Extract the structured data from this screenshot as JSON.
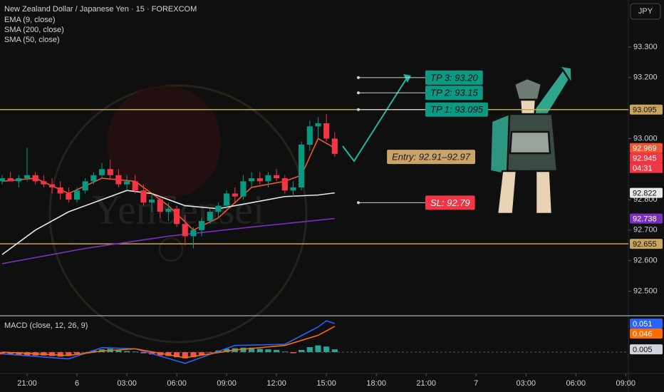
{
  "chart_data": [
    {
      "type": "candlestick",
      "title": "New Zealand Dollar / Japanese Yen · 15 · FOREXCOM",
      "currency": "JPY",
      "watermark": "YenSensei",
      "countdown": "04:31",
      "x": [
        0,
        1,
        2,
        3,
        4,
        5,
        6,
        7,
        8,
        9,
        10,
        11,
        12,
        13,
        14,
        15,
        16,
        17,
        18,
        19,
        20,
        21,
        22,
        23,
        24,
        25,
        26,
        27,
        28,
        29,
        30,
        31,
        32,
        33,
        34,
        35,
        36,
        37,
        38,
        39,
        40
      ],
      "open": [
        92.86,
        92.87,
        92.86,
        92.87,
        92.88,
        92.86,
        92.85,
        92.84,
        92.82,
        92.8,
        92.83,
        92.86,
        92.88,
        92.9,
        92.88,
        92.85,
        92.86,
        92.83,
        92.79,
        92.8,
        92.76,
        92.77,
        92.72,
        92.68,
        92.7,
        92.73,
        92.76,
        92.78,
        92.82,
        92.81,
        92.86,
        92.87,
        92.86,
        92.88,
        92.87,
        92.83,
        92.84,
        92.98,
        93.04,
        93.05,
        93.0
      ],
      "high": [
        92.88,
        92.89,
        92.88,
        92.97,
        92.89,
        92.88,
        92.87,
        92.86,
        92.84,
        92.84,
        92.87,
        92.89,
        92.92,
        92.93,
        92.9,
        92.88,
        92.88,
        92.85,
        92.82,
        92.81,
        92.79,
        92.78,
        92.75,
        92.71,
        92.74,
        92.77,
        92.79,
        92.83,
        92.84,
        92.88,
        92.89,
        92.89,
        92.89,
        92.9,
        92.88,
        92.86,
        92.99,
        93.06,
        93.07,
        93.08,
        93.02
      ],
      "low": [
        92.85,
        92.86,
        92.84,
        92.86,
        92.85,
        92.84,
        92.82,
        92.8,
        92.79,
        92.79,
        92.82,
        92.85,
        92.87,
        92.87,
        92.84,
        92.83,
        92.82,
        92.78,
        92.76,
        92.74,
        92.73,
        92.71,
        92.65,
        92.64,
        92.68,
        92.72,
        92.74,
        92.77,
        92.79,
        92.8,
        92.84,
        92.85,
        92.84,
        92.86,
        92.82,
        92.81,
        92.83,
        92.96,
        93.0,
        92.99,
        92.94
      ],
      "close": [
        92.87,
        92.86,
        92.87,
        92.88,
        92.86,
        92.85,
        92.84,
        92.82,
        92.8,
        92.83,
        92.86,
        92.88,
        92.9,
        92.88,
        92.85,
        92.86,
        92.83,
        92.79,
        92.8,
        92.76,
        92.77,
        92.72,
        92.68,
        92.7,
        92.73,
        92.76,
        92.78,
        92.82,
        92.81,
        92.86,
        92.87,
        92.86,
        92.88,
        92.87,
        92.83,
        92.84,
        92.98,
        93.04,
        93.05,
        93.0,
        92.95
      ],
      "up_color": "#089981",
      "down_color": "#f23645",
      "series": [
        {
          "name": "EMA (9, close)",
          "color": "#f2542d",
          "x": [
            0,
            4,
            8,
            12,
            16,
            20,
            23,
            26,
            30,
            34,
            36,
            38,
            40
          ],
          "values": [
            92.86,
            92.87,
            92.82,
            92.87,
            92.86,
            92.78,
            92.7,
            92.74,
            92.84,
            92.86,
            92.88,
            93.0,
            92.969
          ]
        },
        {
          "name": "SMA (200, close)",
          "color": "#7b2fbe",
          "x": [
            0,
            10,
            20,
            30,
            40
          ],
          "values": [
            92.59,
            92.64,
            92.68,
            92.71,
            92.738
          ]
        },
        {
          "name": "SMA (50, close)",
          "color": "#e8e8e8",
          "x": [
            0,
            4,
            8,
            12,
            15,
            18,
            22,
            26,
            30,
            34,
            38,
            40
          ],
          "values": [
            92.62,
            92.7,
            92.76,
            92.8,
            92.83,
            92.82,
            92.78,
            92.77,
            92.79,
            92.81,
            92.815,
            92.822
          ]
        }
      ],
      "xlim": [
        -0.26,
        75.32
      ],
      "xticks": [
        {
          "value": 3,
          "label": "21:00"
        },
        {
          "value": 9,
          "label": "6"
        },
        {
          "value": 15,
          "label": "03:00"
        },
        {
          "value": 21,
          "label": "06:00"
        },
        {
          "value": 27,
          "label": "09:00"
        },
        {
          "value": 33,
          "label": "12:00"
        },
        {
          "value": 39,
          "label": "15:00"
        },
        {
          "value": 45,
          "label": "18:00"
        },
        {
          "value": 51,
          "label": "21:00"
        },
        {
          "value": 57,
          "label": "7"
        },
        {
          "value": 63,
          "label": "03:00"
        },
        {
          "value": 69,
          "label": "06:00"
        },
        {
          "value": 75,
          "label": "09:00"
        }
      ],
      "ylim": [
        92.4193,
        93.4542
      ],
      "yticks": [
        {
          "value": 93.3,
          "label": "93.300"
        },
        {
          "value": 93.2,
          "label": "93.200"
        },
        {
          "value": 93.0,
          "label": "93.000"
        },
        {
          "value": 92.8,
          "label": "92.800"
        },
        {
          "value": 92.7,
          "label": "92.700"
        },
        {
          "value": 92.6,
          "label": "92.600"
        },
        {
          "value": 92.5,
          "label": "92.500"
        }
      ],
      "price_labels": [
        {
          "value": 93.095,
          "label": "93.095",
          "color": "#c9a55a",
          "line": true
        },
        {
          "value": 92.969,
          "label": "92.969",
          "color": "#f2542d"
        },
        {
          "value": 92.945,
          "label": "92.945",
          "color": "#f23645"
        },
        {
          "value": 92.822,
          "label": "92.822",
          "color": "#e8e8e8"
        },
        {
          "value": 92.738,
          "label": "92.738",
          "color": "#7b2fbe"
        },
        {
          "value": 92.655,
          "label": "92.655",
          "color": "#c9a55a",
          "line": true
        }
      ],
      "annotations": [
        {
          "label": "TP 3: 93.20",
          "value": 93.2,
          "color": "#0c9a82",
          "text_color": "#111111"
        },
        {
          "label": "TP 2: 93.15",
          "value": 93.15,
          "color": "#0c9a82",
          "text_color": "#111111"
        },
        {
          "label": "TP 1: 93.095",
          "value": 93.095,
          "color": "#0c9a82",
          "text_color": "#111111"
        },
        {
          "label": "Entry: 92.91–92.97",
          "value": [
            92.91,
            92.97
          ],
          "color": "#c9a36a",
          "text_color": "#1a1a1a"
        },
        {
          "label": "SL: 92.79",
          "value": 92.79,
          "color": "#f23645",
          "text_color": "#ffffff"
        }
      ]
    },
    {
      "type": "macd",
      "title": "MACD (close, 12, 26, 9)",
      "x": [
        0,
        1,
        2,
        3,
        4,
        5,
        6,
        7,
        8,
        9,
        10,
        11,
        12,
        13,
        14,
        15,
        16,
        17,
        18,
        19,
        20,
        21,
        22,
        23,
        24,
        25,
        26,
        27,
        28,
        29,
        30,
        31,
        32,
        33,
        34,
        35,
        36,
        37,
        38,
        39,
        40
      ],
      "values": [
        -0.004,
        -0.005,
        -0.006,
        -0.007,
        -0.006,
        -0.006,
        -0.007,
        -0.008,
        -0.006,
        -0.003,
        0,
        0.003,
        0.005,
        0.006,
        0.004,
        0.002,
        0.001,
        -0.002,
        -0.004,
        -0.006,
        -0.007,
        -0.009,
        -0.011,
        -0.009,
        -0.005,
        -0.001,
        0.003,
        0.006,
        0.007,
        0.008,
        0.008,
        0.006,
        0.005,
        0.004,
        0.001,
        -0.002,
        0.004,
        0.009,
        0.012,
        0.01,
        0.005
      ],
      "up_color": "#26a69a",
      "down_color": "#ef5350",
      "series": [
        {
          "color": "#2962ff",
          "x": [
            0,
            8,
            12,
            16,
            22,
            28,
            34,
            38,
            39,
            40
          ],
          "values": [
            -0.003,
            -0.012,
            0.008,
            0.006,
            -0.02,
            0.012,
            0.014,
            0.045,
            0.056,
            0.051
          ]
        },
        {
          "color": "#ff6d00",
          "x": [
            0,
            8,
            12,
            16,
            22,
            28,
            34,
            38,
            40
          ],
          "values": [
            0.0,
            -0.006,
            0.002,
            0.006,
            -0.01,
            0.004,
            0.012,
            0.03,
            0.046
          ]
        }
      ],
      "ylim": [
        -0.033,
        0.0625
      ],
      "price_labels": [
        {
          "value": 0.051,
          "label": "0.051",
          "color": "#2962ff"
        },
        {
          "value": 0.046,
          "label": "0.046",
          "color": "#ff6d00"
        },
        {
          "value": 0.005,
          "label": "0.005",
          "color": "#d1d4dc"
        }
      ]
    }
  ]
}
